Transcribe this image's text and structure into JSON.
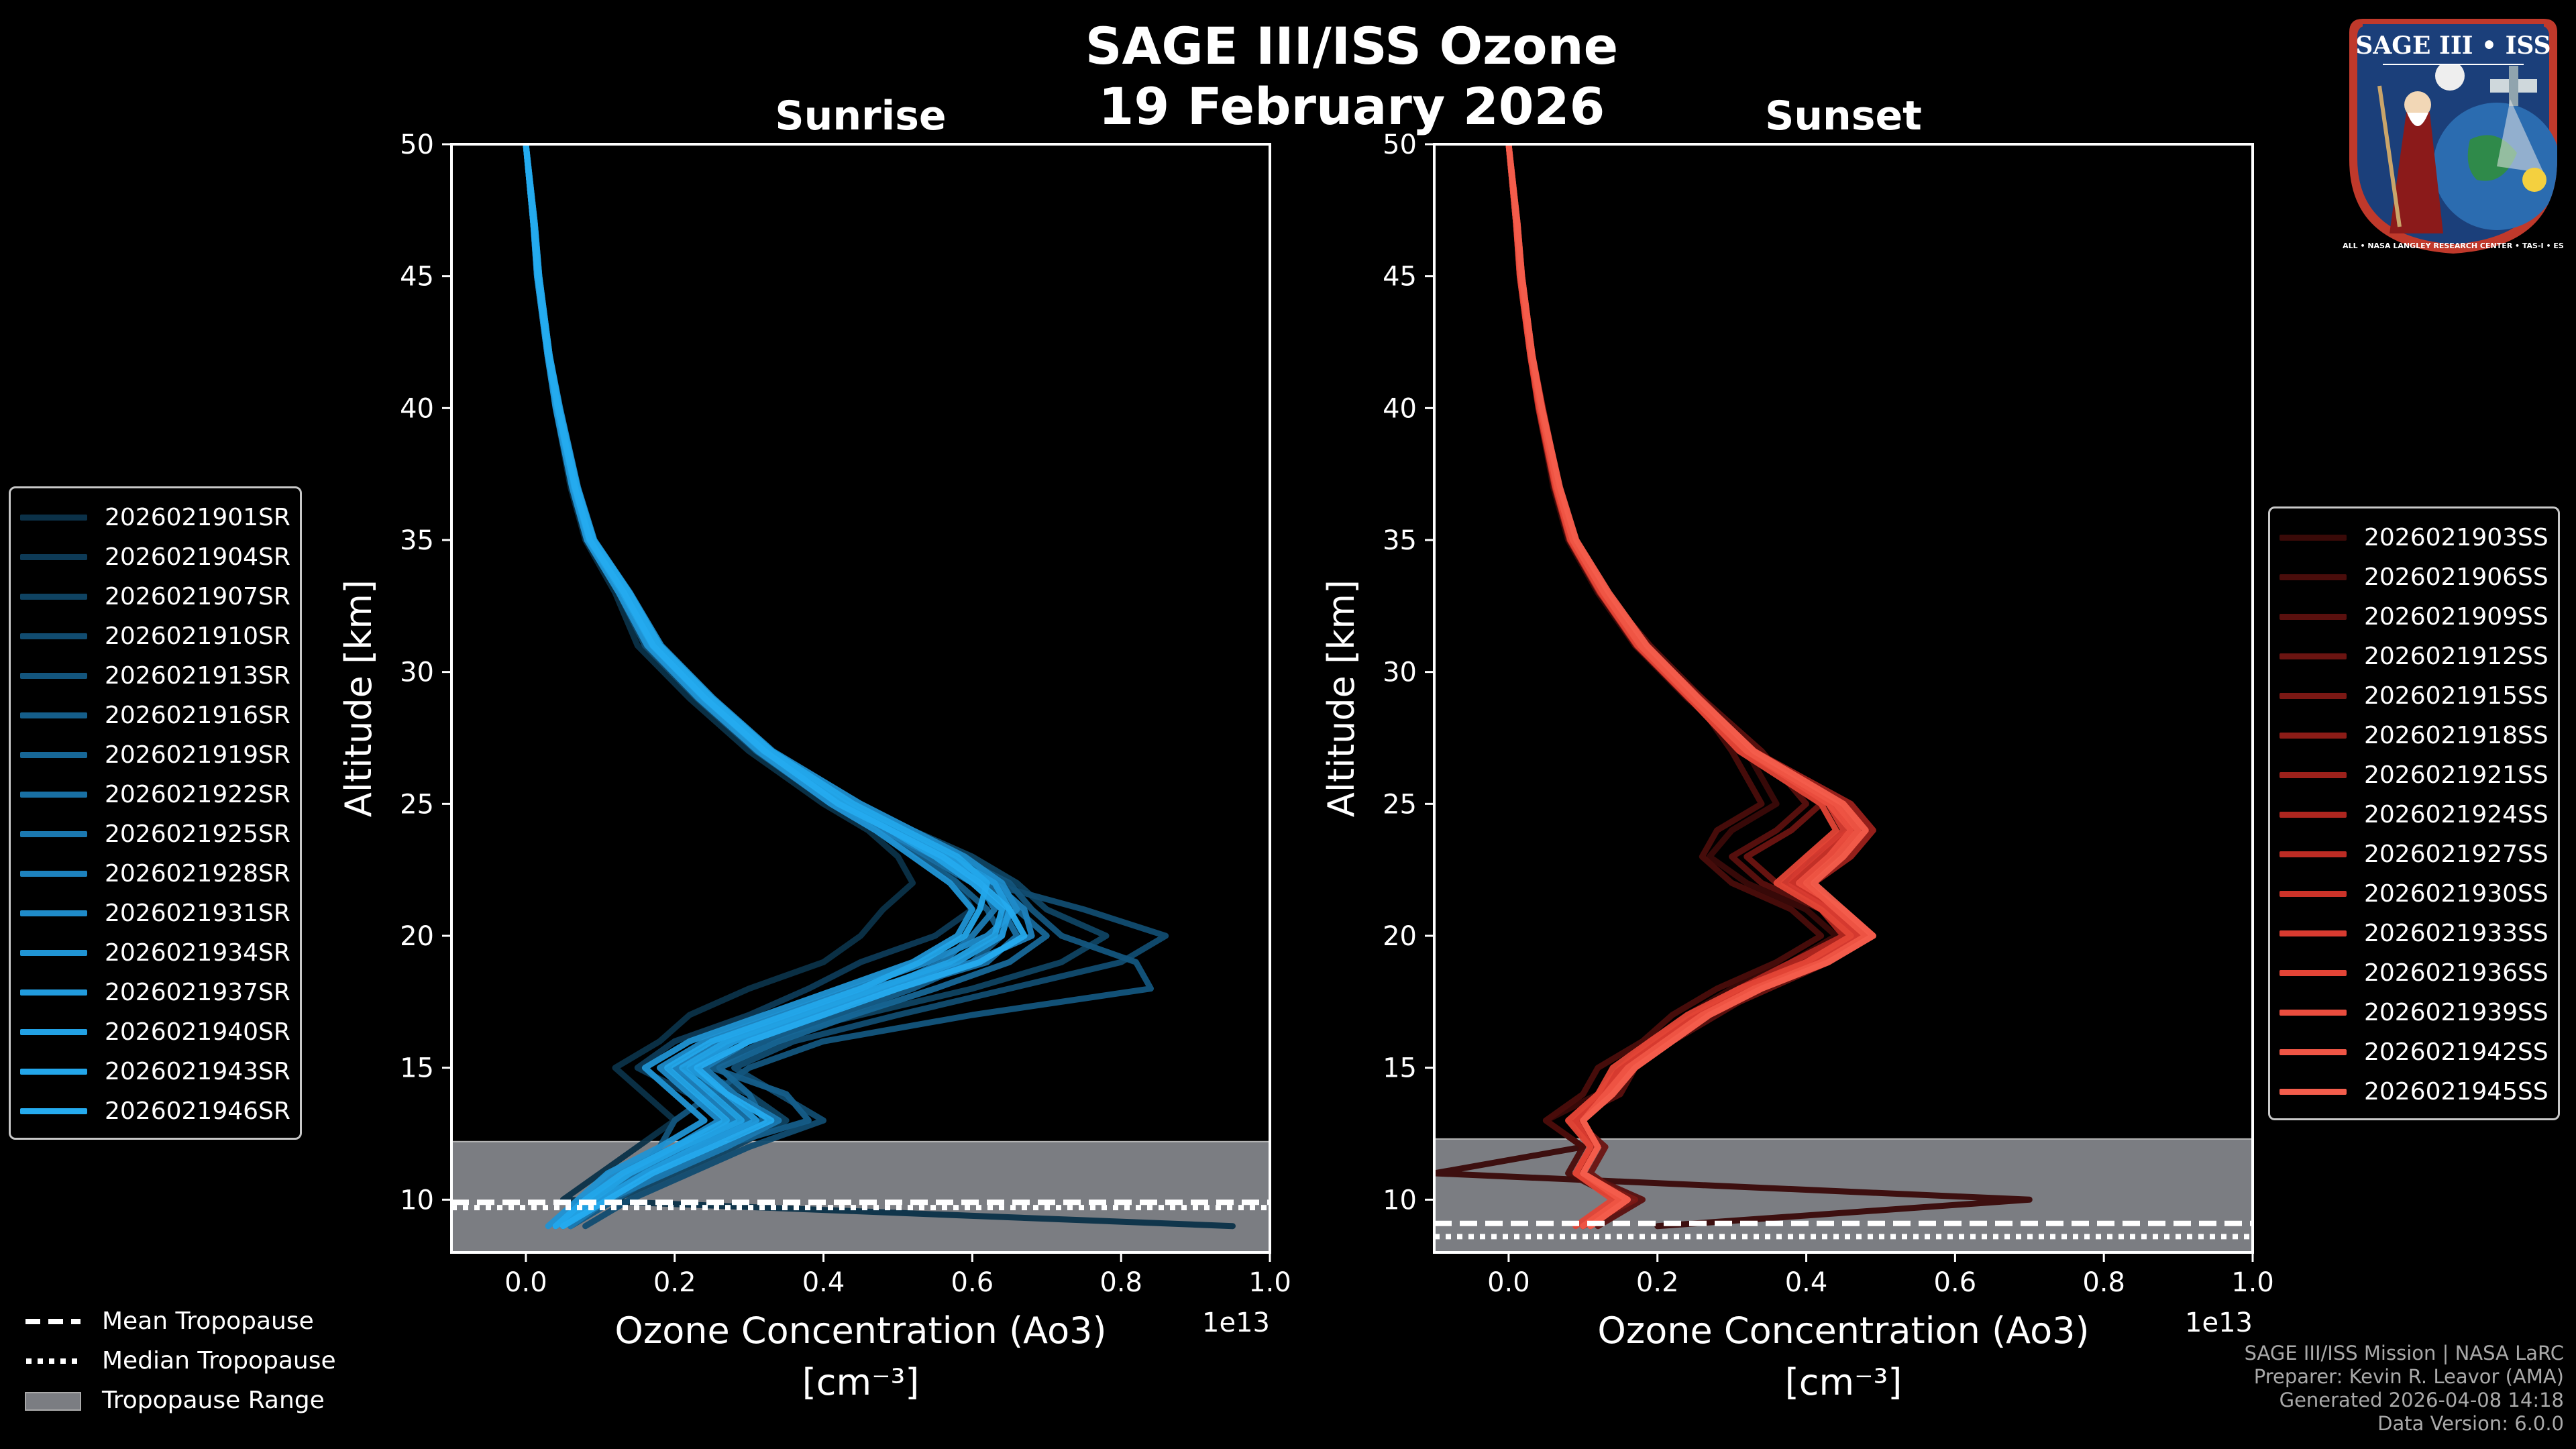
{
  "title": {
    "line1": "SAGE III/ISS Ozone",
    "line2": "19 February 2026"
  },
  "logo": {
    "text": "SAGE III • ISS",
    "ring_text": "BALL • NASA LANGLEY RESEARCH CENTER • TAS-I • ESA"
  },
  "panels": [
    {
      "title": "Sunrise",
      "color": "#1b9fe2"
    },
    {
      "title": "Sunset",
      "color": "#f05a4a"
    }
  ],
  "axes": {
    "ylabel": "Altitude [km]",
    "xlabel_line1": "Ozone Concentration (Ao3)",
    "xlabel_line2": "[cm⁻³]",
    "offset_text": "1e13",
    "x_ticks": [
      "0.0",
      "0.2",
      "0.4",
      "0.6",
      "0.8",
      "1.0"
    ],
    "y_ticks": [
      "10",
      "15",
      "20",
      "25",
      "30",
      "35",
      "40",
      "45",
      "50"
    ]
  },
  "chart_data": [
    {
      "type": "line",
      "title": "Sunrise",
      "xlabel": "Ozone Concentration (Ao3) [cm⁻³]",
      "ylabel": "Altitude [km]",
      "x_scale_offset": "1e13",
      "xlim": [
        -0.1,
        1.0
      ],
      "ylim": [
        8,
        50
      ],
      "legend_position": "center-left (outside)",
      "series_names": [
        "2026021901SR",
        "2026021904SR",
        "2026021907SR",
        "2026021910SR",
        "2026021913SR",
        "2026021916SR",
        "2026021919SR",
        "2026021922SR",
        "2026021925SR",
        "2026021928SR",
        "2026021931SR",
        "2026021934SR",
        "2026021937SR",
        "2026021940SR",
        "2026021943SR",
        "2026021946SR"
      ],
      "series_colors": [
        "#0b3148",
        "#0d3a56",
        "#0f4362",
        "#114c70",
        "#13557d",
        "#155e8a",
        "#176797",
        "#1970a4",
        "#1b79b1",
        "#1d82be",
        "#1f8bc9",
        "#2094d4",
        "#219bdd",
        "#22a1e4",
        "#23a6ea",
        "#25abef"
      ],
      "altitude_km": [
        50,
        47,
        45,
        42,
        40,
        37,
        35,
        33,
        31,
        29,
        27,
        25,
        24,
        23,
        22,
        21,
        20,
        19,
        18,
        17,
        16,
        15,
        14,
        13,
        12,
        11,
        10,
        9
      ],
      "profiles": [
        [
          0.0,
          0.01,
          0.015,
          0.03,
          0.04,
          0.06,
          0.08,
          0.12,
          0.15,
          0.22,
          0.3,
          0.4,
          0.46,
          0.5,
          0.52,
          0.48,
          0.45,
          0.4,
          0.3,
          0.22,
          0.18,
          0.12,
          0.16,
          0.2,
          0.15,
          0.1,
          0.05,
          0.95
        ],
        [
          0.0,
          0.01,
          0.016,
          0.03,
          0.042,
          0.065,
          0.085,
          0.13,
          0.17,
          0.24,
          0.32,
          0.44,
          0.5,
          0.55,
          0.58,
          0.6,
          0.55,
          0.45,
          0.38,
          0.3,
          0.2,
          0.15,
          0.22,
          0.3,
          0.25,
          0.18,
          0.1,
          0.05
        ],
        [
          0.0,
          0.012,
          0.018,
          0.032,
          0.045,
          0.07,
          0.09,
          0.14,
          0.18,
          0.25,
          0.33,
          0.45,
          0.52,
          0.6,
          0.66,
          0.7,
          0.78,
          0.72,
          0.6,
          0.45,
          0.3,
          0.22,
          0.3,
          0.35,
          0.28,
          0.2,
          0.12,
          0.06
        ],
        [
          0.0,
          0.01,
          0.015,
          0.029,
          0.04,
          0.062,
          0.082,
          0.125,
          0.16,
          0.23,
          0.31,
          0.42,
          0.48,
          0.56,
          0.62,
          0.75,
          0.86,
          0.8,
          0.65,
          0.5,
          0.36,
          0.28,
          0.34,
          0.4,
          0.3,
          0.22,
          0.14,
          0.08
        ],
        [
          0.0,
          0.011,
          0.017,
          0.031,
          0.044,
          0.068,
          0.088,
          0.135,
          0.175,
          0.245,
          0.325,
          0.43,
          0.5,
          0.58,
          0.65,
          0.68,
          0.72,
          0.82,
          0.84,
          0.6,
          0.4,
          0.3,
          0.25,
          0.2,
          0.18,
          0.15,
          0.1,
          0.05
        ],
        [
          0.0,
          0.01,
          0.016,
          0.03,
          0.043,
          0.066,
          0.086,
          0.13,
          0.17,
          0.24,
          0.31,
          0.41,
          0.47,
          0.53,
          0.58,
          0.62,
          0.64,
          0.6,
          0.52,
          0.42,
          0.32,
          0.25,
          0.35,
          0.38,
          0.26,
          0.18,
          0.12,
          0.06
        ],
        [
          0.0,
          0.012,
          0.017,
          0.031,
          0.045,
          0.069,
          0.09,
          0.138,
          0.18,
          0.25,
          0.33,
          0.44,
          0.51,
          0.57,
          0.62,
          0.66,
          0.7,
          0.65,
          0.55,
          0.44,
          0.34,
          0.26,
          0.3,
          0.32,
          0.24,
          0.16,
          0.1,
          0.05
        ],
        [
          0.0,
          0.01,
          0.015,
          0.029,
          0.041,
          0.063,
          0.083,
          0.127,
          0.165,
          0.235,
          0.315,
          0.42,
          0.48,
          0.54,
          0.6,
          0.64,
          0.66,
          0.62,
          0.5,
          0.38,
          0.28,
          0.2,
          0.26,
          0.3,
          0.22,
          0.15,
          0.09,
          0.04
        ],
        [
          0.0,
          0.011,
          0.016,
          0.03,
          0.043,
          0.067,
          0.087,
          0.133,
          0.172,
          0.243,
          0.322,
          0.43,
          0.49,
          0.56,
          0.61,
          0.63,
          0.6,
          0.56,
          0.48,
          0.4,
          0.3,
          0.24,
          0.28,
          0.34,
          0.27,
          0.19,
          0.11,
          0.06
        ],
        [
          0.0,
          0.01,
          0.016,
          0.03,
          0.042,
          0.064,
          0.084,
          0.128,
          0.168,
          0.238,
          0.318,
          0.42,
          0.48,
          0.55,
          0.63,
          0.67,
          0.68,
          0.6,
          0.46,
          0.36,
          0.26,
          0.2,
          0.24,
          0.28,
          0.22,
          0.14,
          0.08,
          0.04
        ],
        [
          0.0,
          0.012,
          0.018,
          0.032,
          0.046,
          0.07,
          0.092,
          0.14,
          0.182,
          0.252,
          0.332,
          0.45,
          0.52,
          0.59,
          0.64,
          0.66,
          0.62,
          0.54,
          0.44,
          0.34,
          0.24,
          0.18,
          0.22,
          0.26,
          0.2,
          0.12,
          0.08,
          0.04
        ],
        [
          0.0,
          0.01,
          0.015,
          0.029,
          0.04,
          0.062,
          0.082,
          0.125,
          0.163,
          0.232,
          0.312,
          0.41,
          0.47,
          0.52,
          0.57,
          0.6,
          0.58,
          0.52,
          0.42,
          0.32,
          0.22,
          0.16,
          0.2,
          0.24,
          0.18,
          0.11,
          0.07,
          0.03
        ],
        [
          0.0,
          0.011,
          0.017,
          0.031,
          0.044,
          0.068,
          0.089,
          0.136,
          0.176,
          0.246,
          0.326,
          0.43,
          0.5,
          0.57,
          0.63,
          0.65,
          0.64,
          0.58,
          0.48,
          0.38,
          0.28,
          0.22,
          0.27,
          0.31,
          0.23,
          0.16,
          0.1,
          0.05
        ],
        [
          0.0,
          0.01,
          0.016,
          0.03,
          0.042,
          0.065,
          0.085,
          0.13,
          0.17,
          0.24,
          0.32,
          0.43,
          0.49,
          0.55,
          0.6,
          0.64,
          0.63,
          0.57,
          0.47,
          0.37,
          0.27,
          0.21,
          0.25,
          0.29,
          0.21,
          0.14,
          0.09,
          0.04
        ],
        [
          0.0,
          0.012,
          0.018,
          0.032,
          0.045,
          0.069,
          0.091,
          0.139,
          0.18,
          0.25,
          0.33,
          0.44,
          0.51,
          0.58,
          0.62,
          0.61,
          0.59,
          0.53,
          0.45,
          0.35,
          0.25,
          0.19,
          0.23,
          0.27,
          0.2,
          0.13,
          0.08,
          0.04
        ],
        [
          0.0,
          0.01,
          0.016,
          0.03,
          0.043,
          0.066,
          0.086,
          0.132,
          0.171,
          0.241,
          0.321,
          0.42,
          0.49,
          0.56,
          0.61,
          0.65,
          0.67,
          0.61,
          0.5,
          0.4,
          0.3,
          0.23,
          0.27,
          0.33,
          0.25,
          0.17,
          0.11,
          0.05
        ]
      ],
      "tropopause": {
        "mean_km": 9.9,
        "median_km": 9.7,
        "range_km": [
          8,
          12.2
        ]
      }
    },
    {
      "type": "line",
      "title": "Sunset",
      "xlabel": "Ozone Concentration (Ao3) [cm⁻³]",
      "ylabel": "Altitude [km]",
      "x_scale_offset": "1e13",
      "xlim": [
        -0.1,
        1.0
      ],
      "ylim": [
        8,
        50
      ],
      "legend_position": "center-right (outside)",
      "series_names": [
        "2026021903SS",
        "2026021906SS",
        "2026021909SS",
        "2026021912SS",
        "2026021915SS",
        "2026021918SS",
        "2026021921SS",
        "2026021924SS",
        "2026021927SS",
        "2026021930SS",
        "2026021933SS",
        "2026021936SS",
        "2026021939SS",
        "2026021942SS",
        "2026021945SS"
      ],
      "series_colors": [
        "#3a0a08",
        "#4a0d0b",
        "#5a100e",
        "#6b1411",
        "#7b1814",
        "#8c1c17",
        "#9c211b",
        "#ad261f",
        "#bd2c24",
        "#cc3329",
        "#d83b30",
        "#e34436",
        "#ea4d3e",
        "#ef5545",
        "#f35d4c"
      ],
      "altitude_km": [
        50,
        47,
        45,
        42,
        40,
        37,
        35,
        33,
        31,
        29,
        27,
        25,
        24,
        23,
        22,
        21,
        20,
        19,
        18,
        17,
        16,
        15,
        14,
        13,
        12,
        11,
        10,
        9
      ],
      "profiles": [
        [
          0.0,
          0.01,
          0.015,
          0.03,
          0.04,
          0.06,
          0.08,
          0.12,
          0.17,
          0.24,
          0.32,
          0.36,
          0.3,
          0.27,
          0.32,
          0.4,
          0.44,
          0.38,
          0.3,
          0.24,
          0.2,
          0.16,
          0.12,
          0.05,
          0.1,
          -0.1,
          0.7,
          0.2
        ],
        [
          0.0,
          0.01,
          0.016,
          0.03,
          0.042,
          0.063,
          0.084,
          0.125,
          0.17,
          0.25,
          0.3,
          0.34,
          0.28,
          0.26,
          0.3,
          0.38,
          0.42,
          0.36,
          0.28,
          0.22,
          0.18,
          0.12,
          0.1,
          0.05,
          0.1,
          0.08,
          0.15,
          0.1
        ],
        [
          0.0,
          0.012,
          0.017,
          0.031,
          0.044,
          0.066,
          0.088,
          0.13,
          0.19,
          0.26,
          0.34,
          0.4,
          0.36,
          0.3,
          0.34,
          0.42,
          0.47,
          0.42,
          0.34,
          0.28,
          0.22,
          0.17,
          0.15,
          0.08,
          0.12,
          0.1,
          0.18,
          0.12
        ],
        [
          0.0,
          0.01,
          0.015,
          0.029,
          0.041,
          0.062,
          0.082,
          0.122,
          0.18,
          0.25,
          0.33,
          0.42,
          0.38,
          0.32,
          0.36,
          0.44,
          0.48,
          0.43,
          0.35,
          0.27,
          0.2,
          0.16,
          0.14,
          0.09,
          0.13,
          0.11,
          0.16,
          0.1
        ],
        [
          0.0,
          0.011,
          0.016,
          0.03,
          0.043,
          0.065,
          0.086,
          0.127,
          0.18,
          0.26,
          0.32,
          0.44,
          0.46,
          0.4,
          0.38,
          0.45,
          0.46,
          0.4,
          0.33,
          0.26,
          0.21,
          0.16,
          0.12,
          0.08,
          0.12,
          0.09,
          0.17,
          0.1
        ],
        [
          0.0,
          0.01,
          0.016,
          0.03,
          0.042,
          0.064,
          0.085,
          0.126,
          0.175,
          0.245,
          0.31,
          0.45,
          0.48,
          0.44,
          0.4,
          0.43,
          0.45,
          0.39,
          0.32,
          0.25,
          0.2,
          0.15,
          0.13,
          0.09,
          0.11,
          0.1,
          0.15,
          0.1
        ],
        [
          0.0,
          0.012,
          0.018,
          0.032,
          0.046,
          0.068,
          0.09,
          0.132,
          0.185,
          0.255,
          0.33,
          0.46,
          0.49,
          0.46,
          0.41,
          0.44,
          0.47,
          0.41,
          0.33,
          0.26,
          0.21,
          0.16,
          0.14,
          0.1,
          0.12,
          0.1,
          0.16,
          0.11
        ],
        [
          0.0,
          0.01,
          0.015,
          0.029,
          0.04,
          0.062,
          0.082,
          0.123,
          0.172,
          0.242,
          0.32,
          0.44,
          0.47,
          0.43,
          0.39,
          0.42,
          0.45,
          0.38,
          0.31,
          0.25,
          0.19,
          0.15,
          0.12,
          0.09,
          0.11,
          0.09,
          0.15,
          0.1
        ],
        [
          0.0,
          0.011,
          0.017,
          0.031,
          0.044,
          0.067,
          0.088,
          0.13,
          0.18,
          0.25,
          0.33,
          0.45,
          0.48,
          0.45,
          0.4,
          0.43,
          0.46,
          0.4,
          0.32,
          0.25,
          0.2,
          0.16,
          0.13,
          0.09,
          0.12,
          0.1,
          0.16,
          0.11
        ],
        [
          0.0,
          0.01,
          0.016,
          0.03,
          0.042,
          0.064,
          0.085,
          0.127,
          0.176,
          0.246,
          0.32,
          0.44,
          0.46,
          0.42,
          0.38,
          0.44,
          0.48,
          0.42,
          0.33,
          0.26,
          0.21,
          0.16,
          0.13,
          0.1,
          0.12,
          0.1,
          0.15,
          0.1
        ],
        [
          0.0,
          0.012,
          0.018,
          0.032,
          0.045,
          0.068,
          0.09,
          0.133,
          0.184,
          0.254,
          0.33,
          0.43,
          0.45,
          0.41,
          0.37,
          0.43,
          0.47,
          0.41,
          0.32,
          0.25,
          0.2,
          0.15,
          0.12,
          0.09,
          0.11,
          0.09,
          0.15,
          0.1
        ],
        [
          0.0,
          0.01,
          0.015,
          0.029,
          0.041,
          0.063,
          0.083,
          0.124,
          0.173,
          0.243,
          0.31,
          0.42,
          0.44,
          0.4,
          0.36,
          0.42,
          0.46,
          0.4,
          0.31,
          0.24,
          0.19,
          0.14,
          0.12,
          0.08,
          0.11,
          0.09,
          0.14,
          0.09
        ],
        [
          0.0,
          0.011,
          0.017,
          0.031,
          0.044,
          0.066,
          0.087,
          0.129,
          0.179,
          0.249,
          0.32,
          0.43,
          0.46,
          0.43,
          0.39,
          0.45,
          0.49,
          0.43,
          0.34,
          0.27,
          0.22,
          0.17,
          0.14,
          0.1,
          0.12,
          0.1,
          0.16,
          0.11
        ],
        [
          0.0,
          0.01,
          0.016,
          0.03,
          0.043,
          0.065,
          0.086,
          0.128,
          0.177,
          0.247,
          0.32,
          0.44,
          0.47,
          0.44,
          0.4,
          0.44,
          0.48,
          0.42,
          0.33,
          0.26,
          0.21,
          0.16,
          0.13,
          0.1,
          0.12,
          0.1,
          0.15,
          0.1
        ],
        [
          0.0,
          0.012,
          0.018,
          0.032,
          0.045,
          0.069,
          0.091,
          0.135,
          0.186,
          0.256,
          0.33,
          0.45,
          0.48,
          0.45,
          0.41,
          0.45,
          0.49,
          0.43,
          0.34,
          0.27,
          0.22,
          0.17,
          0.14,
          0.1,
          0.12,
          0.1,
          0.16,
          0.11
        ]
      ],
      "tropopause": {
        "mean_km": 9.1,
        "median_km": 8.6,
        "range_km": [
          8,
          12.3
        ]
      }
    }
  ],
  "tropopause_legend": [
    "Mean Tropopause",
    "Median Tropopause",
    "Tropopause Range"
  ],
  "footer": [
    "SAGE III/ISS Mission | NASA LaRC",
    "Preparer: Kevin R. Leavor (AMA)",
    "Generated 2026-04-08 14:18",
    "Data Version: 6.0.0"
  ]
}
